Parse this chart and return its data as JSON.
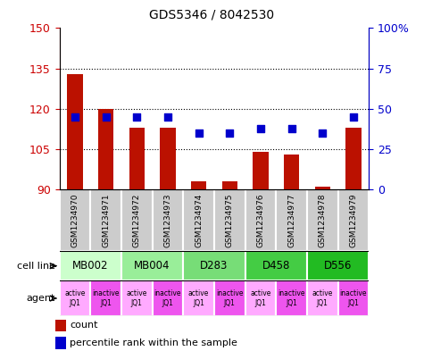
{
  "title": "GDS5346 / 8042530",
  "samples": [
    "GSM1234970",
    "GSM1234971",
    "GSM1234972",
    "GSM1234973",
    "GSM1234974",
    "GSM1234975",
    "GSM1234976",
    "GSM1234977",
    "GSM1234978",
    "GSM1234979"
  ],
  "counts": [
    133,
    120,
    113,
    113,
    93,
    93,
    104,
    103,
    91,
    113
  ],
  "percentile_ranks_pct": [
    45,
    45,
    45,
    45,
    35,
    35,
    38,
    38,
    35,
    45
  ],
  "ylim_left": [
    90,
    150
  ],
  "ylim_right": [
    0,
    100
  ],
  "yticks_left": [
    90,
    105,
    120,
    135,
    150
  ],
  "yticks_right": [
    0,
    25,
    50,
    75,
    100
  ],
  "cell_lines": [
    {
      "label": "MB002",
      "start": 0,
      "end": 2,
      "color": "#ccffcc"
    },
    {
      "label": "MB004",
      "start": 2,
      "end": 4,
      "color": "#99ee99"
    },
    {
      "label": "D283",
      "start": 4,
      "end": 6,
      "color": "#77dd77"
    },
    {
      "label": "D458",
      "start": 6,
      "end": 8,
      "color": "#44cc44"
    },
    {
      "label": "D556",
      "start": 8,
      "end": 10,
      "color": "#22bb22"
    }
  ],
  "agents": [
    "active\nJQ1",
    "inactive\nJQ1",
    "active\nJQ1",
    "inactive\nJQ1",
    "active\nJQ1",
    "inactive\nJQ1",
    "active\nJQ1",
    "inactive\nJQ1",
    "active\nJQ1",
    "inactive\nJQ1"
  ],
  "agent_colors": [
    "#ffaaff",
    "#ee55ee",
    "#ffaaff",
    "#ee55ee",
    "#ffaaff",
    "#ee55ee",
    "#ffaaff",
    "#ee55ee",
    "#ffaaff",
    "#ee55ee"
  ],
  "bar_color": "#bb1100",
  "dot_color": "#0000cc",
  "bar_width": 0.5,
  "dot_size": 40,
  "grid_color": "#000000",
  "tick_color_left": "#cc0000",
  "tick_color_right": "#0000cc",
  "bg_color": "#ffffff",
  "sample_box_color": "#cccccc",
  "cell_line_label_left": "cell line",
  "agent_label_left": "agent",
  "legend_count": "count",
  "legend_pct": "percentile rank within the sample"
}
